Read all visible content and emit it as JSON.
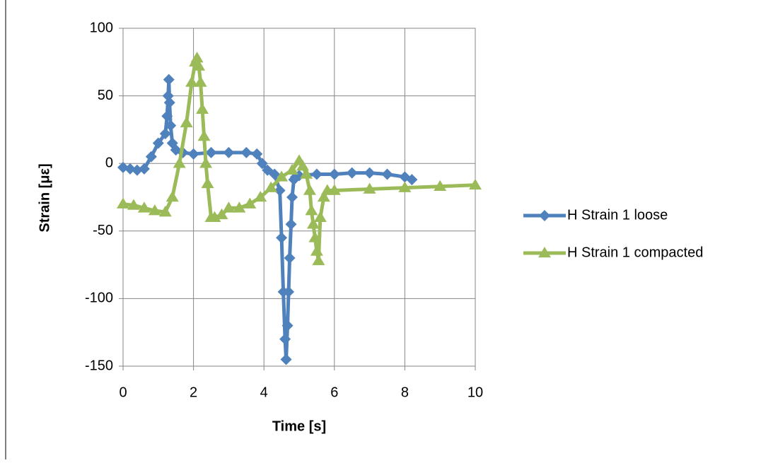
{
  "chart_data": {
    "type": "scatter-line",
    "x_label": "Time [s]",
    "y_label": "Strain [με]",
    "xlim": [
      0,
      10
    ],
    "xticks": [
      0,
      2,
      4,
      6,
      8,
      10
    ],
    "ylim": [
      -150,
      100
    ],
    "yticks": [
      -150,
      -100,
      -50,
      0,
      50,
      100
    ],
    "grid": true,
    "legend": "right",
    "series": [
      {
        "name": "H Strain 1 loose",
        "color": "#4f81bd",
        "marker": "diamond",
        "x": [
          0,
          0.2,
          0.4,
          0.6,
          0.8,
          1.0,
          1.2,
          1.25,
          1.28,
          1.3,
          1.32,
          1.35,
          1.4,
          1.5,
          1.7,
          2.0,
          2.5,
          3.0,
          3.5,
          3.8,
          3.95,
          4.1,
          4.3,
          4.45,
          4.5,
          4.55,
          4.6,
          4.63,
          4.67,
          4.7,
          4.73,
          4.77,
          4.8,
          4.85,
          4.9,
          5.0,
          5.5,
          6.0,
          6.5,
          7.0,
          7.5,
          8.0,
          8.2
        ],
        "values": [
          -3,
          -4,
          -5,
          -4,
          5,
          15,
          22,
          35,
          50,
          62,
          45,
          28,
          15,
          10,
          8,
          7,
          8,
          8,
          8,
          7,
          0,
          -5,
          -8,
          -20,
          -55,
          -95,
          -130,
          -145,
          -120,
          -95,
          -70,
          -45,
          -25,
          -12,
          -10,
          -9,
          -8,
          -8,
          -7,
          -7,
          -8,
          -10,
          -12
        ]
      },
      {
        "name": "H Strain 1 compacted",
        "color": "#9bbb59",
        "marker": "triangle",
        "x": [
          0,
          0.3,
          0.6,
          0.9,
          1.2,
          1.4,
          1.6,
          1.8,
          1.95,
          2.05,
          2.1,
          2.15,
          2.2,
          2.25,
          2.3,
          2.35,
          2.4,
          2.5,
          2.6,
          2.8,
          3.0,
          3.3,
          3.6,
          3.9,
          4.2,
          4.5,
          4.8,
          5.0,
          5.1,
          5.2,
          5.3,
          5.35,
          5.4,
          5.45,
          5.5,
          5.55,
          5.6,
          5.7,
          5.8,
          6.0,
          7.0,
          8.0,
          9.0,
          10.0
        ],
        "values": [
          -30,
          -31,
          -33,
          -35,
          -36,
          -25,
          0,
          30,
          60,
          75,
          78,
          72,
          60,
          40,
          20,
          0,
          -15,
          -40,
          -40,
          -38,
          -33,
          -33,
          -30,
          -25,
          -18,
          -10,
          -5,
          2,
          -2,
          -8,
          -20,
          -35,
          -45,
          -55,
          -65,
          -72,
          -40,
          -25,
          -20,
          -20,
          -19,
          -18,
          -17,
          -16
        ]
      }
    ]
  }
}
